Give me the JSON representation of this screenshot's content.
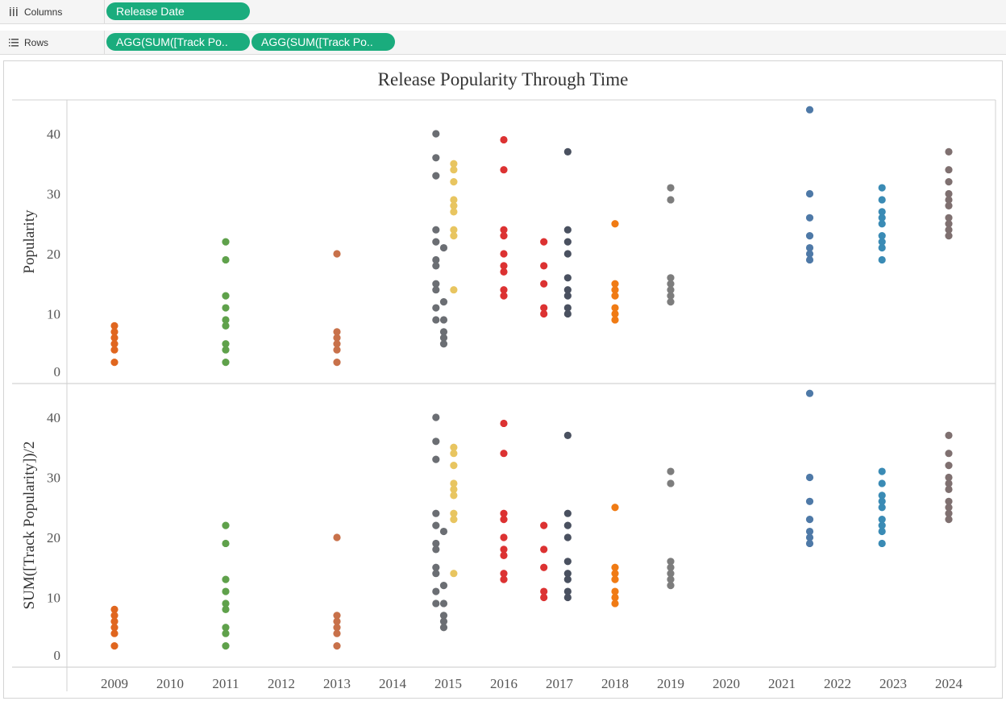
{
  "shelves": {
    "columns": {
      "label": "Columns",
      "icon": "columns-icon",
      "pills": [
        "Release Date"
      ]
    },
    "rows": {
      "label": "Rows",
      "icon": "rows-icon",
      "pills": [
        "AGG(SUM([Track Po..",
        "AGG(SUM([Track Po.."
      ]
    }
  },
  "colors": {
    "pill": "#1aac7d",
    "2009": "#e0661f",
    "2011": "#5fa14b",
    "2013": "#c8714a",
    "2015a": "#6b6e73",
    "2015b": "#e8c560",
    "2016": "#dc3232",
    "2017a": "#dc3232",
    "2017b": "#4a5160",
    "2018": "#f07b14",
    "2019": "#7d7d7d",
    "2021": "#4e79a7",
    "2023": "#3a8bb5",
    "2024": "#7f7070"
  },
  "chart_data": {
    "type": "scatter",
    "title": "Release Popularity Through Time",
    "x_categories": [
      "2009",
      "2010",
      "2011",
      "2012",
      "2013",
      "2014",
      "2015",
      "2016",
      "2017",
      "2018",
      "2019",
      "2020",
      "2021",
      "2022",
      "2023",
      "2024"
    ],
    "panels": [
      {
        "ylabel": "Popularity",
        "y_ticks": [
          0,
          10,
          20,
          30,
          40
        ],
        "ylim": [
          0,
          45
        ]
      },
      {
        "ylabel": "SUM([Track Popularity])/2",
        "y_ticks": [
          0,
          10,
          20,
          30,
          40
        ],
        "ylim": [
          0,
          45
        ]
      }
    ],
    "series": [
      {
        "x": "2009",
        "color": "#e0661f",
        "values": [
          8,
          7,
          6,
          5,
          4,
          3
        ]
      },
      {
        "x": "2011",
        "color": "#5fa14b",
        "values": [
          22,
          19,
          13,
          11,
          9,
          8,
          5,
          4,
          3
        ]
      },
      {
        "x": "2013",
        "color": "#c8714a",
        "values": [
          20,
          7,
          6,
          5,
          4,
          3
        ]
      },
      {
        "x": "2015",
        "offset": -0.22,
        "color": "#6b6e73",
        "values": [
          40,
          36,
          33,
          24,
          22,
          19,
          18,
          15,
          14,
          11,
          9
        ]
      },
      {
        "x": "2015",
        "offset": -0.08,
        "color": "#6b6e73",
        "values": [
          21,
          12,
          9,
          7,
          6,
          5
        ]
      },
      {
        "x": "2015",
        "offset": 0.1,
        "color": "#e8c560",
        "values": [
          35,
          34,
          32,
          29,
          28,
          27,
          24,
          23,
          14
        ]
      },
      {
        "x": "2016",
        "color": "#dc3232",
        "values": [
          39,
          34,
          24,
          23,
          20,
          18,
          17,
          14,
          13
        ]
      },
      {
        "x": "2017",
        "offset": -0.28,
        "color": "#dc3232",
        "values": [
          22,
          18,
          15,
          11,
          10
        ]
      },
      {
        "x": "2017",
        "offset": 0.15,
        "color": "#4a5160",
        "values": [
          37,
          24,
          22,
          20,
          16,
          14,
          13,
          11,
          10
        ]
      },
      {
        "x": "2018",
        "color": "#f07b14",
        "values": [
          25,
          15,
          14,
          13,
          11,
          10,
          9
        ]
      },
      {
        "x": "2019",
        "color": "#7d7d7d",
        "values": [
          31,
          29,
          16,
          15,
          14,
          13,
          12
        ]
      },
      {
        "x": "2021",
        "offset": 0.5,
        "color": "#4e79a7",
        "values": [
          44,
          30,
          26,
          23,
          21,
          20,
          19
        ]
      },
      {
        "x": "2023",
        "offset": -0.2,
        "color": "#3a8bb5",
        "values": [
          31,
          29,
          27,
          26,
          25,
          23,
          22,
          21,
          19
        ]
      },
      {
        "x": "2024",
        "color": "#7f7070",
        "values": [
          37,
          34,
          32,
          30,
          29,
          28,
          26,
          25,
          24,
          23
        ]
      }
    ],
    "grid": false,
    "legend": "none"
  }
}
